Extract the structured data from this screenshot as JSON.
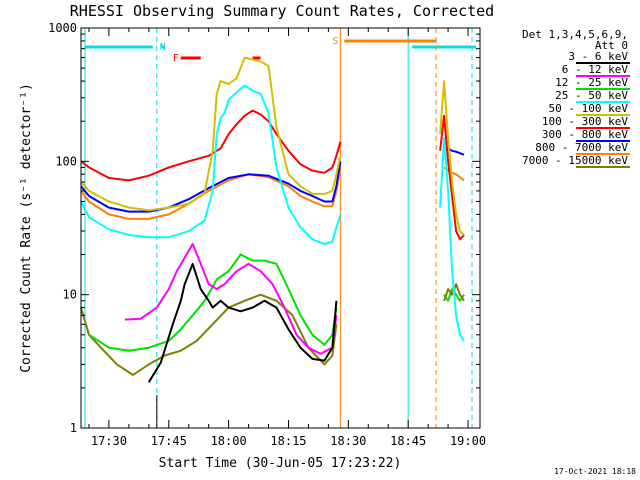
{
  "chart_data": {
    "type": "line",
    "title": "RHESSI Observing Summary Count Rates, Corrected",
    "xlabel": "Start Time (30-Jun-05 17:23:22)",
    "ylabel": "Corrected Count Rate (s⁻¹ detector⁻¹)",
    "y_scale": "log",
    "ylim": [
      1,
      1000
    ],
    "xlim": [
      "17:23",
      "19:03"
    ],
    "x_ticks": [
      "17:30",
      "17:45",
      "18:00",
      "18:15",
      "18:30",
      "18:45",
      "19:00"
    ],
    "y_ticks": [
      "1",
      "10",
      "100",
      "1000"
    ],
    "legend_header": [
      "Det 1,3,4,5,6,9,",
      "Att 0"
    ],
    "legend_position": "right",
    "footer": "17-Oct-2021 18:18",
    "flags": [
      {
        "label": "N",
        "color": "#00e0e0"
      },
      {
        "label": "F",
        "color": "#ff0000"
      },
      {
        "label": "S",
        "color": "#ff8000"
      }
    ],
    "series": [
      {
        "name": "3 - 6 keV",
        "color": "#000000",
        "x": [
          "17:40",
          "17:43",
          "17:46",
          "17:48",
          "17:49",
          "17:51",
          "17:53",
          "17:55",
          "17:56",
          "17:58",
          "18:00",
          "18:03",
          "18:06",
          "18:09",
          "18:12",
          "18:15",
          "18:18",
          "18:21",
          "18:24",
          "18:26",
          "18:27"
        ],
        "y": [
          2.2,
          3.1,
          6,
          9,
          12,
          17,
          11,
          9,
          8,
          9,
          8,
          7.5,
          8,
          9,
          8,
          5.5,
          4,
          3.3,
          3.2,
          4,
          9
        ]
      },
      {
        "name": "6 - 12 keV",
        "color": "#ff00ff",
        "x": [
          "17:34",
          "17:38",
          "17:42",
          "17:45",
          "17:47",
          "17:49",
          "17:51",
          "17:53",
          "17:55",
          "17:57",
          "17:59",
          "18:02",
          "18:05",
          "18:08",
          "18:11",
          "18:14",
          "18:17",
          "18:20",
          "18:23",
          "18:26",
          "18:27"
        ],
        "y": [
          6.5,
          6.6,
          8,
          11,
          15,
          19,
          24,
          17,
          12,
          11,
          12,
          15,
          17,
          15,
          12,
          8,
          5,
          4,
          3.6,
          4,
          7
        ]
      },
      {
        "name": "12 - 25 keV",
        "color": "#00e000",
        "x": [
          "17:25",
          "17:30",
          "17:35",
          "17:40",
          "17:45",
          "17:48",
          "17:51",
          "17:54",
          "17:57",
          "18:00",
          "18:03",
          "18:06",
          "18:09",
          "18:12",
          "18:15",
          "18:18",
          "18:21",
          "18:24",
          "18:26",
          "18:27"
        ],
        "y": [
          5,
          4,
          3.8,
          4,
          4.5,
          5.5,
          7,
          9,
          13,
          15,
          20,
          18,
          18,
          17,
          11,
          7,
          5,
          4.2,
          5,
          8
        ]
      },
      {
        "name": "25 - 50 keV",
        "color": "#00ffff",
        "x": [
          "17:23",
          "17:25",
          "17:30",
          "17:35",
          "17:40",
          "17:45",
          "17:50",
          "17:54",
          "17:56",
          "17:57",
          "17:58",
          "17:59",
          "18:00",
          "18:02",
          "18:04",
          "18:06",
          "18:08",
          "18:10",
          "18:12",
          "18:15",
          "18:18",
          "18:21",
          "18:24",
          "18:26",
          "18:27",
          "18:28"
        ],
        "y": [
          50,
          38,
          31,
          28,
          27,
          27,
          30,
          36,
          60,
          160,
          210,
          230,
          290,
          330,
          370,
          340,
          320,
          230,
          90,
          45,
          32,
          26,
          24,
          25,
          32,
          40
        ]
      },
      {
        "name": "50 - 100 keV",
        "color": "#d0c000",
        "x": [
          "17:23",
          "17:25",
          "17:30",
          "17:35",
          "17:40",
          "17:45",
          "17:50",
          "17:54",
          "17:56",
          "17:57",
          "17:58",
          "18:00",
          "18:02",
          "18:04",
          "18:06",
          "18:08",
          "18:10",
          "18:12",
          "18:15",
          "18:18",
          "18:21",
          "18:24",
          "18:26",
          "18:27",
          "18:28"
        ],
        "y": [
          70,
          60,
          50,
          45,
          43,
          45,
          48,
          58,
          120,
          320,
          400,
          380,
          420,
          600,
          580,
          560,
          520,
          180,
          80,
          65,
          57,
          57,
          60,
          80,
          110
        ]
      },
      {
        "name": "100 - 300 keV",
        "color": "#ff0000",
        "x": [
          "17:23",
          "17:25",
          "17:30",
          "17:35",
          "17:40",
          "17:45",
          "17:50",
          "17:55",
          "17:58",
          "18:00",
          "18:02",
          "18:04",
          "18:06",
          "18:08",
          "18:10",
          "18:12",
          "18:15",
          "18:18",
          "18:21",
          "18:24",
          "18:26",
          "18:27",
          "18:28"
        ],
        "y": [
          100,
          90,
          75,
          72,
          78,
          90,
          100,
          110,
          125,
          160,
          190,
          220,
          240,
          225,
          200,
          160,
          120,
          95,
          85,
          82,
          90,
          110,
          140
        ]
      },
      {
        "name": "300 - 800 keV",
        "color": "#0000ff",
        "x": [
          "17:23",
          "17:25",
          "17:30",
          "17:35",
          "17:40",
          "17:45",
          "17:50",
          "17:55",
          "18:00",
          "18:05",
          "18:10",
          "18:15",
          "18:18",
          "18:21",
          "18:24",
          "18:26",
          "18:27",
          "18:28"
        ],
        "y": [
          65,
          55,
          45,
          42,
          42,
          45,
          52,
          63,
          75,
          80,
          78,
          68,
          60,
          55,
          50,
          50,
          65,
          100
        ]
      },
      {
        "name": "800 - 7000 keV",
        "color": "#ff8000",
        "x": [
          "17:23",
          "17:25",
          "17:30",
          "17:35",
          "17:40",
          "17:45",
          "17:50",
          "17:55",
          "18:00",
          "18:05",
          "18:10",
          "18:15",
          "18:18",
          "18:21",
          "18:24",
          "18:26",
          "18:27",
          "18:28"
        ],
        "y": [
          60,
          50,
          40,
          37,
          37,
          40,
          48,
          60,
          72,
          80,
          76,
          65,
          55,
          50,
          46,
          46,
          60,
          90
        ]
      },
      {
        "name": "7000 - 15000 keV",
        "color": "#808000",
        "x": [
          "17:23",
          "17:25",
          "17:28",
          "17:32",
          "17:36",
          "17:40",
          "17:44",
          "17:48",
          "17:52",
          "17:56",
          "18:00",
          "18:04",
          "18:08",
          "18:12",
          "18:16",
          "18:20",
          "18:24",
          "18:26",
          "18:27"
        ],
        "y": [
          8,
          5,
          4,
          3,
          2.5,
          3,
          3.5,
          3.8,
          4.5,
          6,
          8,
          9,
          10,
          9,
          7,
          4,
          3,
          3.5,
          6
        ]
      }
    ],
    "post_gap_series": [
      {
        "name": "25 - 50 keV",
        "color": "#00ffff",
        "x": [
          "18:53",
          "18:54",
          "18:55",
          "18:56",
          "18:57",
          "18:58",
          "18:59"
        ],
        "y": [
          45,
          150,
          60,
          15,
          7,
          5,
          4.5
        ]
      },
      {
        "name": "50 - 100 keV",
        "color": "#d0c000",
        "x": [
          "18:53",
          "18:54",
          "18:55",
          "18:56",
          "18:57",
          "18:58",
          "18:59"
        ],
        "y": [
          160,
          400,
          150,
          70,
          40,
          30,
          28
        ]
      },
      {
        "name": "100 - 300 keV",
        "color": "#ff0000",
        "x": [
          "18:53",
          "18:54",
          "18:55",
          "18:56",
          "18:57",
          "18:58",
          "18:59"
        ],
        "y": [
          120,
          220,
          100,
          55,
          30,
          26,
          28
        ]
      },
      {
        "name": "300 - 800 keV",
        "color": "#0000ff",
        "x": [
          "18:54",
          "18:55",
          "18:56",
          "18:57",
          "18:58",
          "18:59"
        ],
        "y": [
          120,
          125,
          120,
          118,
          115,
          112
        ]
      },
      {
        "name": "800 - 7000 keV",
        "color": "#ff8000",
        "x": [
          "18:54",
          "18:55",
          "18:56",
          "18:57",
          "18:58",
          "18:59"
        ],
        "y": [
          90,
          86,
          82,
          80,
          76,
          72
        ]
      },
      {
        "name": "7000 - 15000 keV",
        "color": "#808000",
        "x": [
          "18:54",
          "18:55",
          "18:56",
          "18:57",
          "18:58",
          "18:59"
        ],
        "y": [
          9,
          11,
          10,
          12,
          10,
          9
        ]
      },
      {
        "name": "12 - 25 keV",
        "color": "#00e000",
        "x": [
          "18:54",
          "18:55",
          "18:56",
          "18:57",
          "18:58",
          "18:59"
        ],
        "y": [
          10,
          9,
          11,
          10,
          9,
          10
        ]
      }
    ]
  }
}
